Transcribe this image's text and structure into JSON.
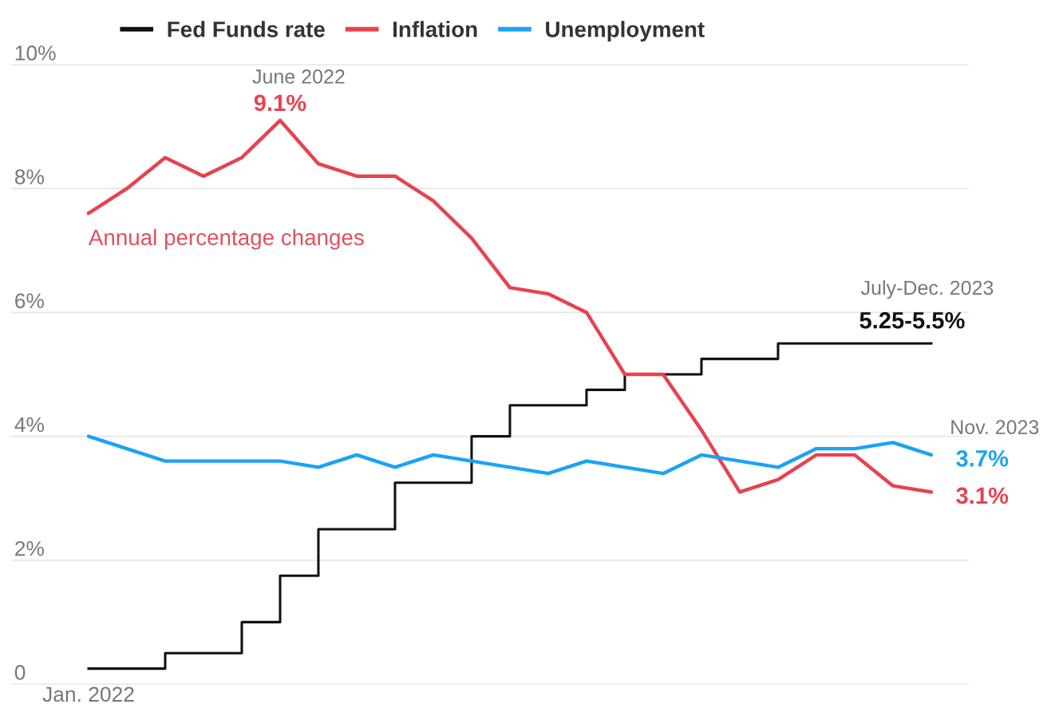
{
  "chart_data": {
    "type": "line",
    "categories": [
      "Jan. 2022",
      null,
      null,
      null,
      null,
      null,
      null,
      null,
      null,
      null,
      null,
      null,
      null,
      null,
      null,
      null,
      null,
      null,
      null,
      null,
      null,
      null,
      null
    ],
    "series": [
      {
        "name": "Fed Funds rate",
        "color": "#111111",
        "type": "step",
        "values": [
          0.25,
          0.25,
          0.5,
          0.5,
          1.0,
          1.75,
          2.5,
          2.5,
          3.25,
          3.25,
          4.0,
          4.5,
          4.5,
          4.75,
          5.0,
          5.0,
          5.25,
          5.25,
          5.5,
          5.5,
          5.5,
          5.5,
          5.5
        ]
      },
      {
        "name": "Inflation",
        "color": "#e8424f",
        "values": [
          7.6,
          8.0,
          8.5,
          8.2,
          8.5,
          9.1,
          8.4,
          8.2,
          8.2,
          7.8,
          7.2,
          6.4,
          6.3,
          6.0,
          5.0,
          5.0,
          4.1,
          3.1,
          3.3,
          3.7,
          3.7,
          3.2,
          3.1
        ],
        "value_labels": [
          null,
          null,
          null,
          null,
          null,
          "9.1%",
          null,
          null,
          null,
          null,
          null,
          null,
          null,
          null,
          null,
          null,
          null,
          null,
          null,
          null,
          null,
          null,
          "3.1%"
        ]
      },
      {
        "name": "Unemployment",
        "color": "#1aa3f5",
        "values": [
          4.0,
          3.8,
          3.6,
          3.6,
          3.6,
          3.6,
          3.5,
          3.7,
          3.5,
          3.7,
          3.6,
          3.5,
          3.4,
          3.6,
          3.5,
          3.4,
          3.7,
          3.6,
          3.5,
          3.8,
          3.8,
          3.9,
          3.7
        ],
        "value_labels": [
          null,
          null,
          null,
          null,
          null,
          null,
          null,
          null,
          null,
          null,
          null,
          null,
          null,
          null,
          null,
          null,
          null,
          null,
          null,
          null,
          null,
          null,
          "3.7%"
        ]
      }
    ],
    "ylim": [
      0,
      10
    ],
    "yticks": [
      {
        "value": 0,
        "label": "0"
      },
      {
        "value": 2,
        "label": "2%"
      },
      {
        "value": 4,
        "label": "4%"
      },
      {
        "value": 6,
        "label": "6%"
      },
      {
        "value": 8,
        "label": "8%"
      },
      {
        "value": 10,
        "label": "10%"
      }
    ],
    "grid": "y",
    "legend": "top",
    "marker": "none",
    "line_style": "solid",
    "annotations": [
      "June 2022",
      "July-Dec. 2023",
      "5.25-5.5%",
      "Nov. 2023",
      "Annual percentage changes"
    ]
  }
}
